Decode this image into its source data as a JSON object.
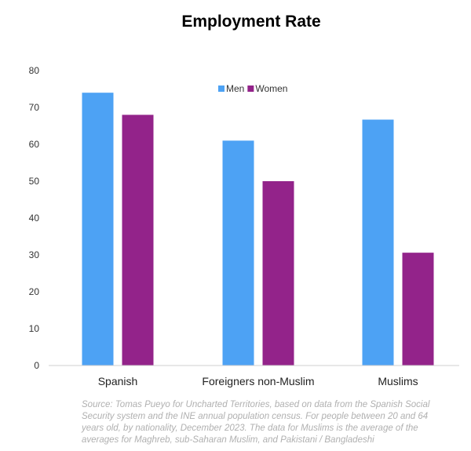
{
  "chart_data": {
    "type": "bar",
    "title": "Employment Rate",
    "categories": [
      "Spanish",
      "Foreigners non-Muslim",
      "Muslims"
    ],
    "series": [
      {
        "name": "Men",
        "values": [
          74,
          61,
          66.7
        ],
        "color": "#4da2f4"
      },
      {
        "name": "Women",
        "values": [
          68,
          50,
          30.6
        ],
        "color": "#93238a"
      }
    ],
    "xlabel": "",
    "ylabel": "",
    "ylim": [
      0,
      80
    ],
    "yticks": [
      0,
      10,
      20,
      30,
      40,
      50,
      60,
      70,
      80
    ],
    "grid": false,
    "legend_position": "top-center"
  },
  "source_note": "Source: Tomas Pueyo for Uncharted Territories, based on data from the Spanish Social Security system and the INE annual population census. For people between 20 and 64 years old, by nationality, December 2023. The data for Muslims is the average of the averages for Maghreb, sub-Saharan Muslim, and Pakistani / Bangladeshi"
}
